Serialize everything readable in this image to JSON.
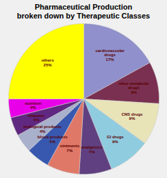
{
  "chart_data": {
    "type": "pie",
    "title": "Pharmaceutical Production\nbroken down by Therapeutic Classes",
    "categories": [
      "cardiovascular\ndrugs\n17%",
      "other metabolic\ndrugs\n9%",
      "CNS drugs\n9%",
      "GI drugs\n9%",
      "analgesics\n7%",
      "ointments\n7%",
      "blood products\n5%",
      "biological products\n4%",
      "vitamins\n4%",
      "nutrition\n4%",
      "others\n25%"
    ],
    "values": [
      17,
      9,
      9,
      9,
      7,
      7,
      5,
      4,
      4,
      4,
      25
    ],
    "colors": [
      "#9090cc",
      "#7a3050",
      "#e8e4b8",
      "#90cce0",
      "#604080",
      "#e07868",
      "#3858b0",
      "#a8b0cc",
      "#602880",
      "#e800e8",
      "#ffff00"
    ]
  }
}
